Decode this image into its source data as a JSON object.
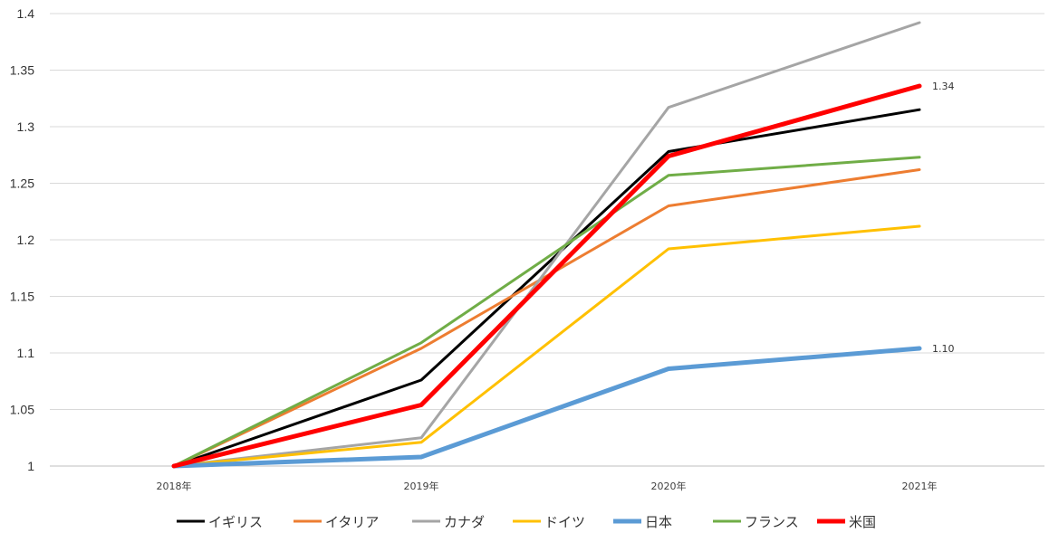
{
  "chart_data": {
    "type": "line",
    "title": "",
    "xlabel": "",
    "ylabel": "",
    "categories": [
      "2018年",
      "2019年",
      "2020年",
      "2021年"
    ],
    "y_ticks": [
      "1",
      "1.05",
      "1.1",
      "1.15",
      "1.2",
      "1.25",
      "1.3",
      "1.35",
      "1.4"
    ],
    "ylim": [
      1,
      1.4
    ],
    "grid": "horizontal",
    "legend_position": "bottom",
    "series": [
      {
        "name": "イギリス",
        "color": "#000000",
        "values": [
          1.0,
          1.076,
          1.278,
          1.315
        ],
        "emphasis": false
      },
      {
        "name": "イタリア",
        "color": "#ED7D31",
        "values": [
          1.0,
          1.104,
          1.23,
          1.262
        ],
        "emphasis": false
      },
      {
        "name": "カナダ",
        "color": "#A5A5A5",
        "values": [
          1.0,
          1.025,
          1.317,
          1.392
        ],
        "emphasis": false
      },
      {
        "name": "ドイツ",
        "color": "#FFC000",
        "values": [
          1.0,
          1.021,
          1.192,
          1.212
        ],
        "emphasis": false
      },
      {
        "name": "日本",
        "color": "#5B9BD5",
        "values": [
          1.0,
          1.008,
          1.086,
          1.104
        ],
        "emphasis": true
      },
      {
        "name": "フランス",
        "color": "#70AD47",
        "values": [
          1.0,
          1.109,
          1.257,
          1.273
        ],
        "emphasis": false
      },
      {
        "name": "米国",
        "color": "#FF0000",
        "values": [
          1.0,
          1.054,
          1.274,
          1.336
        ],
        "emphasis": true
      }
    ],
    "data_labels": [
      {
        "series": "米国",
        "category": "2021年",
        "text": "1.34"
      },
      {
        "series": "日本",
        "category": "2021年",
        "text": "1.10"
      }
    ]
  }
}
